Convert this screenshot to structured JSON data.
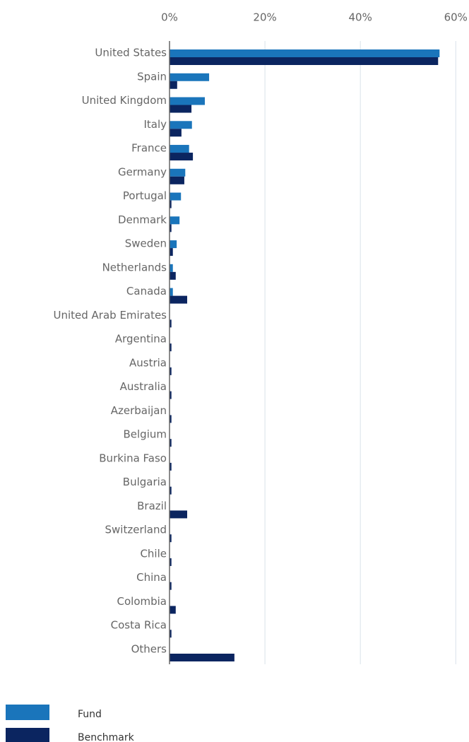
{
  "chart_data": {
    "type": "hbar",
    "categories": [
      "United States",
      "Spain",
      "United Kingdom",
      "Italy",
      "France",
      "Germany",
      "Portugal",
      "Denmark",
      "Sweden",
      "Netherlands",
      "Canada",
      "United Arab Emirates",
      "Argentina",
      "Austria",
      "Australia",
      "Azerbaijan",
      "Belgium",
      "Burkina Faso",
      "Bulgaria",
      "Brazil",
      "Switzerland",
      "Chile",
      "China",
      "Colombia",
      "Costa Rica",
      "Others"
    ],
    "series": [
      {
        "name": "Fund",
        "color": "#1a75bb",
        "values": [
          56.6,
          8.3,
          7.4,
          4.7,
          4.1,
          3.3,
          2.4,
          2.1,
          1.5,
          0.7,
          0.7,
          0,
          0,
          0,
          0,
          0,
          0,
          0,
          0,
          0,
          0,
          0,
          0,
          0,
          0,
          0
        ]
      },
      {
        "name": "Benchmark",
        "color": "#0b2560",
        "values": [
          56.3,
          1.6,
          4.6,
          2.5,
          4.9,
          3.1,
          0.4,
          0.4,
          0.7,
          1.3,
          3.7,
          0.4,
          0.4,
          0.4,
          0.4,
          0.4,
          0.4,
          0.4,
          0.4,
          3.7,
          0.4,
          0.4,
          0.4,
          1.3,
          0.4,
          13.6
        ]
      }
    ],
    "xlim": [
      0,
      60.7
    ],
    "xticks": [
      {
        "value": 0,
        "label": "0%"
      },
      {
        "value": 20,
        "label": "20%"
      },
      {
        "value": 40,
        "label": "40%"
      },
      {
        "value": 60,
        "label": "60%"
      }
    ],
    "grid": true,
    "legend": "bottom-left"
  }
}
